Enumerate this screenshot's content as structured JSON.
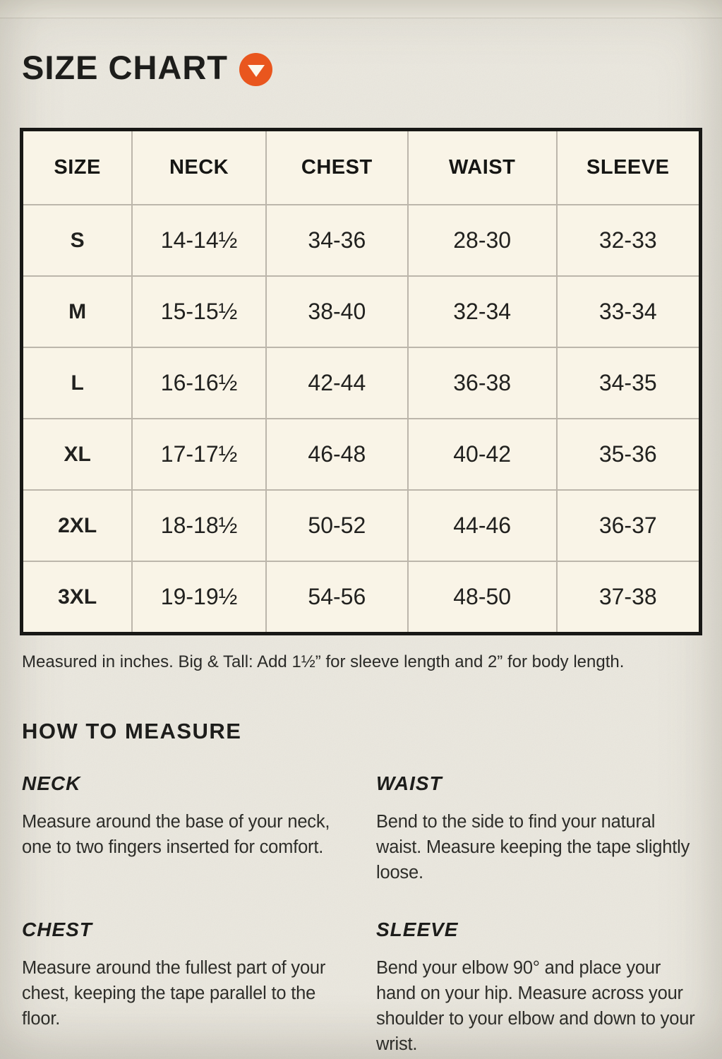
{
  "header": {
    "title": "SIZE CHART"
  },
  "size_table": {
    "columns": [
      "SIZE",
      "NECK",
      "CHEST",
      "WAIST",
      "SLEEVE"
    ],
    "rows": [
      [
        "S",
        "14-14½",
        "34-36",
        "28-30",
        "32-33"
      ],
      [
        "M",
        "15-15½",
        "38-40",
        "32-34",
        "33-34"
      ],
      [
        "L",
        "16-16½",
        "42-44",
        "36-38",
        "34-35"
      ],
      [
        "XL",
        "17-17½",
        "46-48",
        "40-42",
        "35-36"
      ],
      [
        "2XL",
        "18-18½",
        "50-52",
        "44-46",
        "36-37"
      ],
      [
        "3XL",
        "19-19½",
        "54-56",
        "48-50",
        "37-38"
      ]
    ],
    "note": "Measured in inches. Big & Tall: Add 1½” for sleeve length and 2” for body length."
  },
  "how_to_measure": {
    "heading": "HOW TO MEASURE",
    "sections": [
      {
        "label": "NECK",
        "text": "Measure around the base of your neck, one to two fingers inserted for comfort."
      },
      {
        "label": "WAIST",
        "text": "Bend to the side to find your natural waist. Measure keeping the tape slightly loose."
      },
      {
        "label": "CHEST",
        "text": "Measure around the fullest part of your chest, keeping the tape parallel to the floor."
      },
      {
        "label": "SLEEVE",
        "text": "Bend your elbow 90° and place your hand on your hip. Measure across your shoulder to your elbow and down to your wrist."
      }
    ]
  },
  "icons": {
    "title_marker": "chevron-down-circle"
  },
  "colors": {
    "accent_orange": "#e9561e",
    "paper_background": "#eae7de",
    "table_cell_background": "#f9f4e7",
    "table_border": "#181816",
    "grid_line": "#bcb6ab",
    "text": "#1f1f1d"
  }
}
